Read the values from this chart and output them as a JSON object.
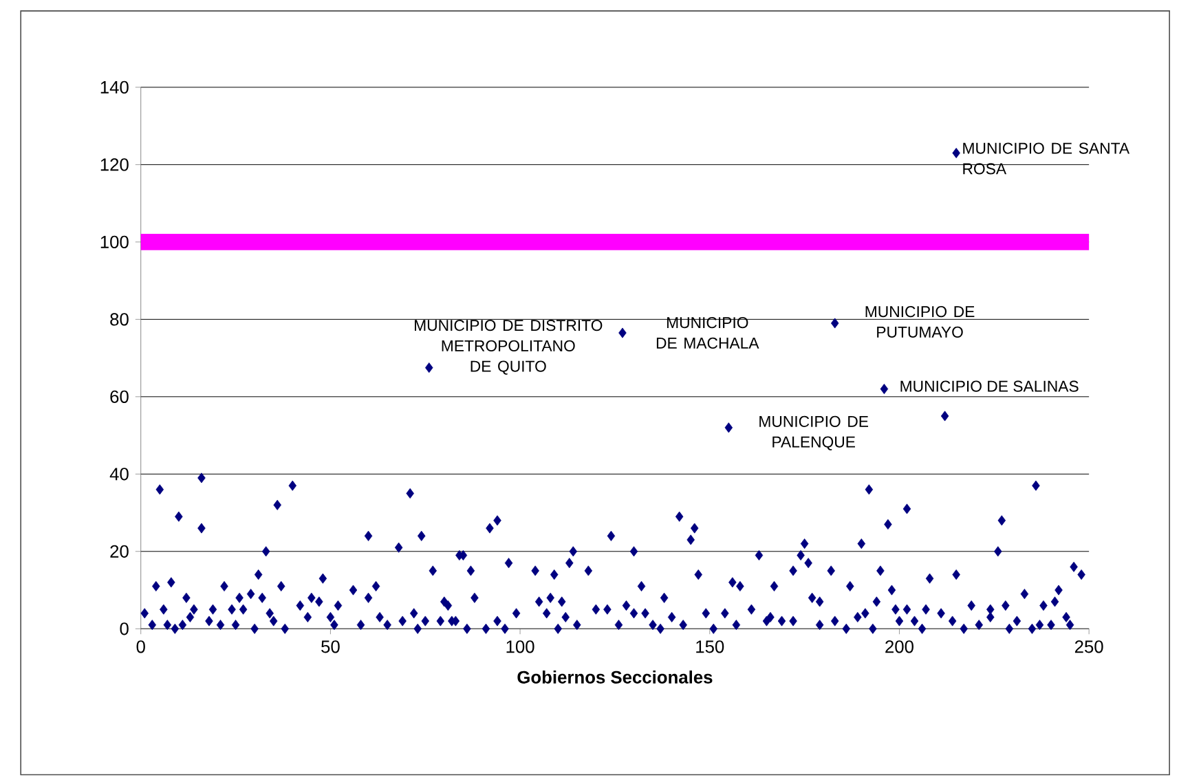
{
  "chart_data": {
    "type": "scatter",
    "xlabel": "Gobiernos Seccionales",
    "xlim": [
      0,
      250
    ],
    "xticks": [
      0,
      50,
      100,
      150,
      200,
      250
    ],
    "ylim": [
      0,
      140
    ],
    "yticks": [
      0,
      20,
      40,
      60,
      80,
      100,
      120,
      140
    ],
    "grid": "y",
    "marker": "diamond",
    "series": [
      {
        "color": "#000080",
        "x": [
          1,
          3,
          4,
          5,
          6,
          7,
          8,
          9,
          10,
          11,
          12,
          13,
          14,
          16,
          16,
          18,
          19,
          21,
          22,
          24,
          25,
          26,
          27,
          29,
          30,
          31,
          32,
          33,
          34,
          35,
          36,
          37,
          38,
          40,
          42,
          44,
          45,
          47,
          48,
          50,
          51,
          52,
          56,
          58,
          60,
          60,
          62,
          63,
          65,
          68,
          69,
          71,
          72,
          73,
          74,
          75,
          76,
          77,
          79,
          80,
          81,
          82,
          83,
          84,
          85,
          86,
          87,
          88,
          91,
          92,
          94,
          94,
          96,
          97,
          99,
          104,
          105,
          107,
          108,
          109,
          110,
          111,
          112,
          113,
          114,
          115,
          118,
          120,
          123,
          124,
          126,
          127,
          128,
          130,
          130,
          132,
          133,
          135,
          137,
          138,
          140,
          142,
          143,
          145,
          146,
          147,
          149,
          151,
          154,
          155,
          156,
          157,
          158,
          161,
          163,
          165,
          166,
          167,
          169,
          172,
          172,
          174,
          175,
          176,
          177,
          179,
          179,
          182,
          183,
          183,
          186,
          187,
          189,
          190,
          191,
          192,
          193,
          194,
          195,
          196,
          197,
          198,
          199,
          200,
          202,
          202,
          204,
          206,
          207,
          208,
          211,
          212,
          214,
          215,
          215,
          217,
          219,
          221,
          224,
          224,
          226,
          227,
          228,
          229,
          231,
          233,
          235,
          236,
          237,
          238,
          240,
          241,
          242,
          244,
          245,
          246,
          248
        ],
        "values": [
          4,
          1,
          11,
          36,
          5,
          1,
          12,
          0,
          29,
          1,
          8,
          3,
          5,
          39,
          26,
          2,
          5,
          1,
          11,
          5,
          1,
          8,
          5,
          9,
          0,
          14,
          8,
          20,
          4,
          2,
          32,
          11,
          0,
          37,
          6,
          3,
          8,
          7,
          13,
          3,
          1,
          6,
          10,
          1,
          24,
          8,
          11,
          3,
          1,
          21,
          2,
          35,
          4,
          0,
          24,
          2,
          67.5,
          15,
          2,
          7,
          6,
          2,
          2,
          19,
          19,
          0,
          15,
          8,
          0,
          26,
          28,
          2,
          0,
          17,
          4,
          15,
          7,
          4,
          8,
          14,
          0,
          7,
          3,
          17,
          20,
          1,
          15,
          5,
          5,
          24,
          1,
          76.5,
          6,
          20,
          4,
          11,
          4,
          1,
          0,
          8,
          3,
          29,
          1,
          23,
          26,
          14,
          4,
          0,
          4,
          52,
          12,
          1,
          11,
          5,
          19,
          2,
          3,
          11,
          2,
          15,
          2,
          19,
          22,
          17,
          8,
          7,
          1,
          15,
          2,
          79,
          0,
          11,
          3,
          22,
          4,
          36,
          0,
          7,
          15,
          62,
          27,
          10,
          5,
          2,
          31,
          5,
          2,
          0,
          5,
          13,
          4,
          55,
          2,
          14,
          123,
          0,
          6,
          1,
          5,
          3,
          20,
          28,
          6,
          0,
          2,
          9,
          0,
          37,
          1,
          6,
          1,
          7,
          10,
          3,
          1,
          16,
          14
        ]
      }
    ],
    "ref_lines": [
      {
        "axis": "y",
        "value": 100,
        "color": "#ff00ff"
      }
    ],
    "annotations": [
      {
        "text": "MUNICIPIO DE DISTRITO METROPOLITANO DE QUITO",
        "x": 76,
        "y": 67.5
      },
      {
        "text": "MUNICIPIO DE MACHALA",
        "x": 127,
        "y": 76.5
      },
      {
        "text": "MUNICIPIO DE PALENQUE",
        "x": 155,
        "y": 52
      },
      {
        "text": "MUNICIPIO DE PUTUMAYO",
        "x": 183,
        "y": 79
      },
      {
        "text": "MUNICIPIO DE SALINAS",
        "x": 196,
        "y": 62
      },
      {
        "text": "MUNICIPIO DE SANTA ROSA",
        "x": 215,
        "y": 123
      }
    ]
  }
}
